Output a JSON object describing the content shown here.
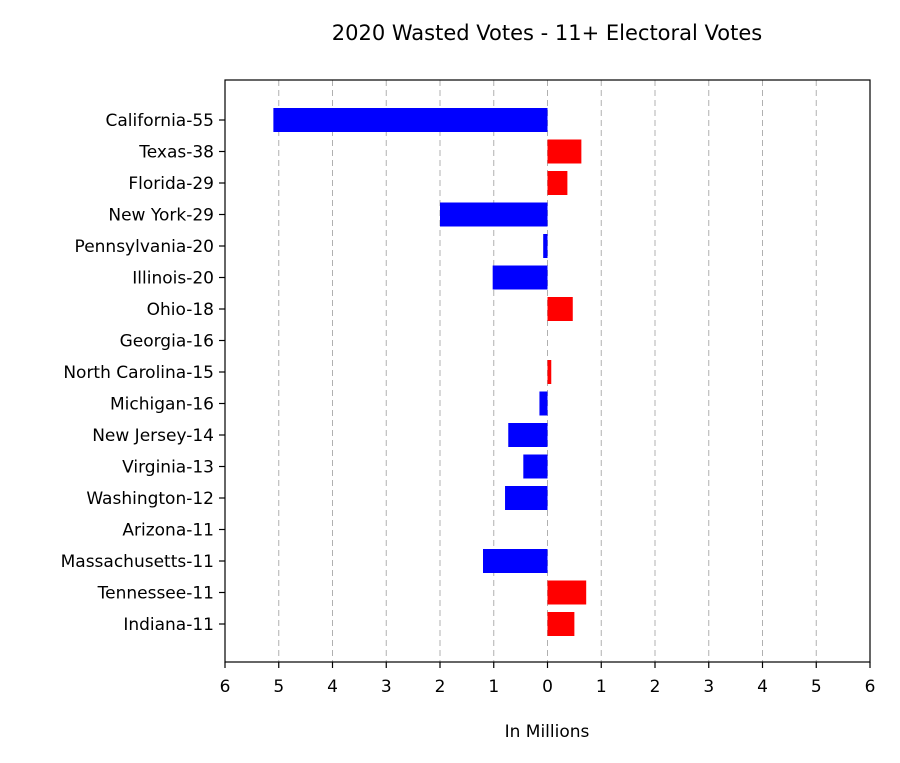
{
  "chart_data": {
    "type": "bar",
    "orientation": "horizontal",
    "title": "2020 Wasted Votes - 11+ Electoral Votes",
    "xlabel": "In Millions",
    "ylabel": "",
    "xlim": [
      -6,
      6
    ],
    "x_ticks": [
      -6,
      -5,
      -4,
      -3,
      -2,
      -1,
      0,
      1,
      2,
      3,
      4,
      5,
      6
    ],
    "x_tick_labels": [
      "6",
      "5",
      "4",
      "3",
      "2",
      "1",
      "0",
      "1",
      "2",
      "3",
      "4",
      "5",
      "6"
    ],
    "grid": "vertical dashed",
    "colors": {
      "negative": "#0000ff",
      "positive": "#ff0000"
    },
    "categories": [
      "California-55",
      "Texas-38",
      "Florida-29",
      "New York-29",
      "Pennsylvania-20",
      "Illinois-20",
      "Ohio-18",
      "Georgia-16",
      "North Carolina-15",
      "Michigan-16",
      "New Jersey-14",
      "Virginia-13",
      "Washington-12",
      "Arizona-11",
      "Massachusetts-11",
      "Tennessee-11",
      "Indiana-11"
    ],
    "values": [
      -5.1,
      0.63,
      0.37,
      -2.0,
      -0.08,
      -1.02,
      0.47,
      0.0,
      0.07,
      -0.15,
      -0.73,
      -0.45,
      -0.79,
      0.0,
      -1.2,
      0.72,
      0.5
    ]
  }
}
